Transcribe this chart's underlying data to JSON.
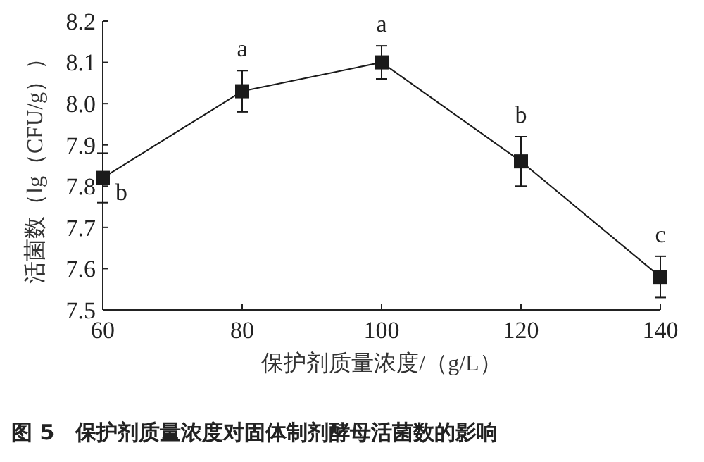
{
  "chart_data": {
    "type": "line",
    "title": "图 5　保护剂质量浓度对固体制剂酵母活菌数的影响",
    "xlabel": "保护剂质量浓度/（g/L）",
    "ylabel": "活菌数（lg（CFU/g））",
    "x": [
      60,
      80,
      100,
      120,
      140
    ],
    "series": [
      {
        "color": "#1a1a1a",
        "values": [
          7.82,
          8.03,
          8.1,
          7.86,
          7.58
        ],
        "errors": [
          0.06,
          0.05,
          0.04,
          0.06,
          0.05
        ]
      }
    ],
    "xlim": [
      60,
      140
    ],
    "xticks": [
      60,
      80,
      100,
      120,
      140
    ],
    "ylim": [
      7.5,
      8.2
    ],
    "yticks": [
      7.5,
      7.6,
      7.7,
      7.8,
      7.9,
      {
        "value": 8,
        "label": "8.0"
      },
      8.1,
      8.2
    ],
    "marker": "square",
    "line_style": "solid",
    "grid": false,
    "annotations": [
      {
        "text": "b",
        "x": 60,
        "y": 7.82
      },
      {
        "text": "a",
        "x": 80,
        "y": 8.03
      },
      {
        "text": "a",
        "x": 100,
        "y": 8.1
      },
      {
        "text": "b",
        "x": 120,
        "y": 7.86
      },
      {
        "text": "c",
        "x": 140,
        "y": 7.58
      }
    ]
  }
}
